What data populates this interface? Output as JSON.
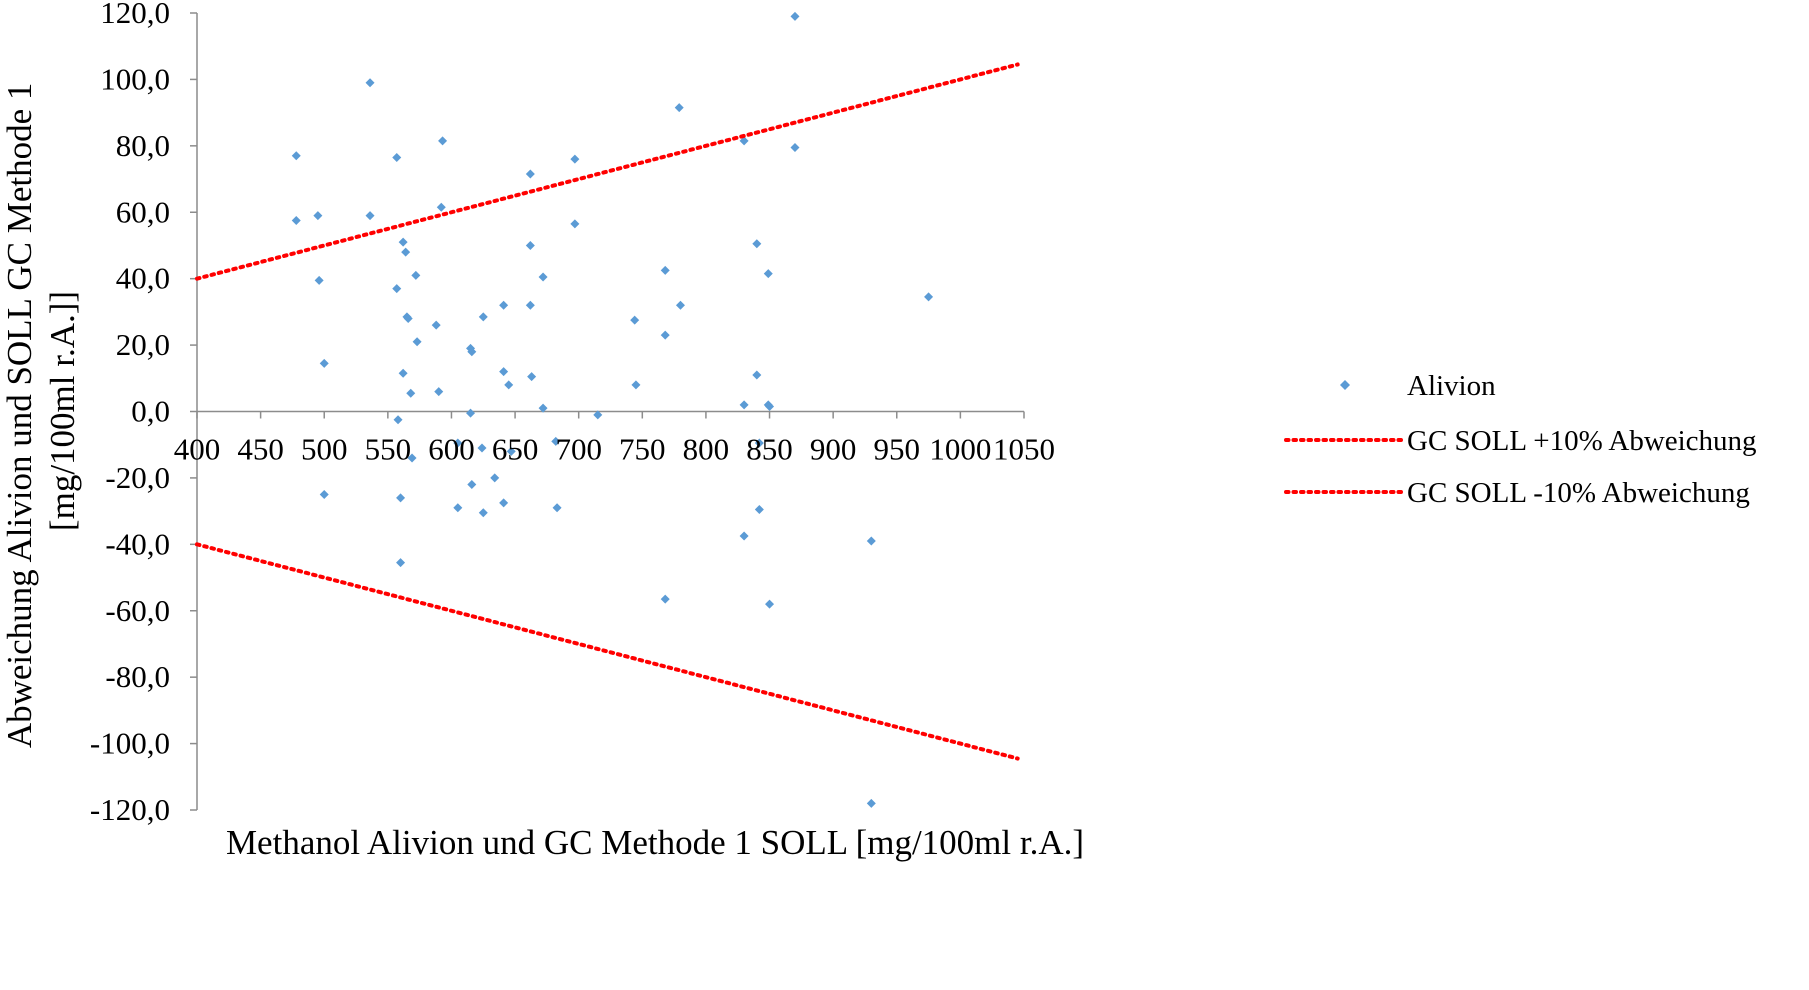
{
  "chart_data": {
    "type": "scatter",
    "title": "",
    "xlabel": "Methanol Alivion und GC Methode 1 SOLL [mg/100ml r.A.]",
    "ylabel_lines": [
      "Abweichung  Alivion und SOLL GC Methode 1",
      "[mg/100ml r.A.]]"
    ],
    "xlim": [
      400,
      1050
    ],
    "ylim": [
      -120,
      120
    ],
    "x_ticks": [
      "400",
      "450",
      "500",
      "550",
      "600",
      "650",
      "700",
      "750",
      "800",
      "850",
      "900",
      "950",
      "1000",
      "1050"
    ],
    "x_tick_values": [
      400,
      450,
      500,
      550,
      600,
      650,
      700,
      750,
      800,
      850,
      900,
      950,
      1000,
      1050
    ],
    "y_ticks": [
      "120,0",
      "100,0",
      "80,0",
      "60,0",
      "40,0",
      "20,0",
      "0,0",
      "-20,0",
      "-40,0",
      "-60,0",
      "-80,0",
      "-100,0",
      "-120,0"
    ],
    "y_tick_values": [
      120,
      100,
      80,
      60,
      40,
      20,
      0,
      -20,
      -40,
      -60,
      -80,
      -100,
      -120
    ],
    "grid": false,
    "legend_position": "right",
    "series": [
      {
        "name": "Alivion",
        "kind": "scatter",
        "marker": "diamond",
        "color": "#5b9bd5",
        "points": [
          [
            478,
            77
          ],
          [
            478,
            57.5
          ],
          [
            495,
            59
          ],
          [
            496,
            39.5
          ],
          [
            500,
            14.5
          ],
          [
            500,
            -25
          ],
          [
            536,
            99
          ],
          [
            536,
            59
          ],
          [
            557,
            76.5
          ],
          [
            557,
            37
          ],
          [
            558,
            -2.5
          ],
          [
            560,
            -26
          ],
          [
            560,
            -45.5
          ],
          [
            562,
            51
          ],
          [
            562,
            11.5
          ],
          [
            564,
            48
          ],
          [
            565,
            28.5
          ],
          [
            566,
            28
          ],
          [
            568,
            5.5
          ],
          [
            569,
            -14
          ],
          [
            572,
            41
          ],
          [
            573,
            21
          ],
          [
            588,
            26
          ],
          [
            590,
            6
          ],
          [
            592,
            61.5
          ],
          [
            593,
            81.5
          ],
          [
            605,
            -9.5
          ],
          [
            605,
            -29
          ],
          [
            615,
            19
          ],
          [
            615,
            -0.5
          ],
          [
            616,
            18
          ],
          [
            616,
            -22
          ],
          [
            624,
            -11
          ],
          [
            625,
            28.5
          ],
          [
            625,
            -30.5
          ],
          [
            634,
            -20
          ],
          [
            641,
            32
          ],
          [
            641,
            12
          ],
          [
            641,
            -27.5
          ],
          [
            645,
            8
          ],
          [
            647,
            -12
          ],
          [
            662,
            71.5
          ],
          [
            662,
            50
          ],
          [
            662,
            32
          ],
          [
            663,
            10.5
          ],
          [
            672,
            40.5
          ],
          [
            672,
            1
          ],
          [
            682,
            -9
          ],
          [
            683,
            -29
          ],
          [
            697,
            76
          ],
          [
            697,
            56.5
          ],
          [
            715,
            -1
          ],
          [
            744,
            27.5
          ],
          [
            745,
            8
          ],
          [
            768,
            42.5
          ],
          [
            768,
            23
          ],
          [
            768,
            -56.5
          ],
          [
            779,
            91.5
          ],
          [
            780,
            32
          ],
          [
            830,
            81.5
          ],
          [
            830,
            2
          ],
          [
            830,
            -37.5
          ],
          [
            840,
            50.5
          ],
          [
            840,
            11
          ],
          [
            842,
            -9.5
          ],
          [
            842,
            -29.5
          ],
          [
            849,
            41.5
          ],
          [
            849,
            2
          ],
          [
            850,
            1.5
          ],
          [
            850,
            -58
          ],
          [
            870,
            119
          ],
          [
            870,
            79.5
          ],
          [
            930,
            -39
          ],
          [
            930,
            -118
          ],
          [
            975,
            34.5
          ]
        ]
      },
      {
        "name": "GC SOLL +10% Abweichung",
        "kind": "line",
        "style": "dotted",
        "color": "#ff0000",
        "points": [
          [
            400,
            40
          ],
          [
            1045,
            104.5
          ]
        ]
      },
      {
        "name": "GC SOLL -10% Abweichung",
        "kind": "line",
        "style": "dotted",
        "color": "#ff0000",
        "points": [
          [
            400,
            -40
          ],
          [
            1045,
            -104.5
          ]
        ]
      }
    ]
  }
}
